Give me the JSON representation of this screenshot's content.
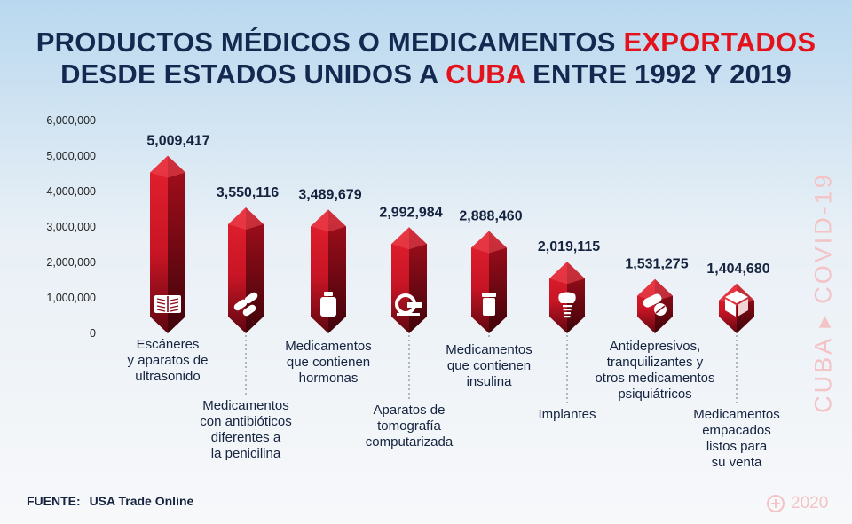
{
  "chart_data": {
    "type": "bar",
    "title_parts": [
      {
        "text": "PRODUCTOS MÉDICOS O MEDICAMENTOS ",
        "hl": false
      },
      {
        "text": "EXPORTADOS",
        "hl": true
      },
      {
        "text": "DESDE ESTADOS UNIDOS A ",
        "hl": false,
        "br": true
      },
      {
        "text": "CUBA",
        "hl": true
      },
      {
        "text": " ENTRE 1992 Y 2019",
        "hl": false
      }
    ],
    "ylim": [
      0,
      6000000
    ],
    "yticks": [
      "0",
      "1,000,000",
      "2,000,000",
      "3,000,000",
      "4,000,000",
      "5,000,000",
      "6,000,000"
    ],
    "categories": [
      "Escáneres y aparatos de ultrasonido",
      "Medicamentos con antibióticos diferentes a la penicilina",
      "Medicamentos que contienen hormonas",
      "Aparatos de tomografía computarizada",
      "Medicamentos que contienen insulina",
      "Implantes",
      "Antidepresivos, tranquilizantes y otros medicamentos psiquiátricos",
      "Medicamentos empacados listos para su venta"
    ],
    "category_lines": [
      [
        "Escáneres",
        "y aparatos de",
        "ultrasonido"
      ],
      [
        "Medicamentos",
        "con antibióticos",
        "diferentes a",
        "la penicilina"
      ],
      [
        "Medicamentos",
        "que contienen",
        "hormonas"
      ],
      [
        "Aparatos de",
        "tomografía",
        "computarizada"
      ],
      [
        "Medicamentos",
        "que contienen",
        "insulina"
      ],
      [
        "Implantes"
      ],
      [
        "Antidepresivos,",
        "tranquilizantes y",
        "otros medicamentos",
        "psiquiátricos"
      ],
      [
        "Medicamentos",
        "empacados",
        "listos para",
        "su venta"
      ]
    ],
    "values": [
      5009417,
      3550116,
      3489679,
      2992984,
      2888460,
      2019115,
      1531275,
      1404680
    ],
    "value_labels": [
      "5,009,417",
      "3,550,116",
      "3,489,679",
      "2,992,984",
      "2,888,460",
      "2,019,115",
      "1,531,275",
      "1,404,680"
    ],
    "icons": [
      "xray-icon",
      "pills-icon",
      "vial-icon",
      "ct-scanner-icon",
      "insulin-vial-icon",
      "dental-implant-icon",
      "capsules-icon",
      "package-icon"
    ],
    "bar_color": "#d91a2a",
    "bar_dark": "#6e0812",
    "grid": false
  },
  "source": {
    "label": "FUENTE:",
    "text": "USA Trade Online"
  },
  "side_tag": "CUBA ▸ COVID-19",
  "year_tag": "2020"
}
